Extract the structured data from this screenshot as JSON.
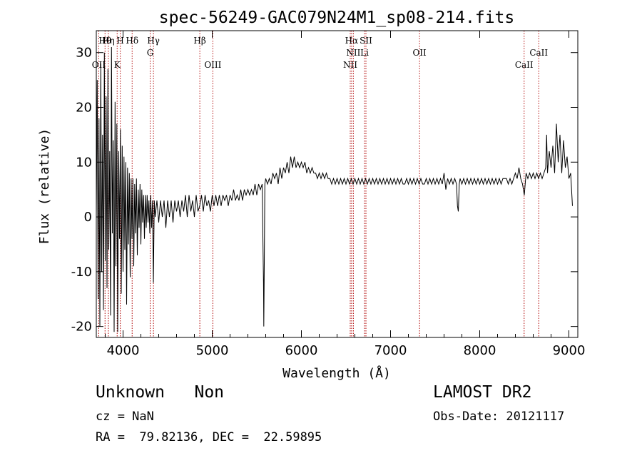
{
  "chart_data": {
    "type": "line",
    "title": "spec-56249-GAC079N24M1_sp08-214.fits",
    "xlabel": "Wavelength (Å)",
    "ylabel": "Flux (relative)",
    "xlim": [
      3700,
      9100
    ],
    "ylim": [
      -22,
      34
    ],
    "x_ticks": [
      4000,
      5000,
      6000,
      7000,
      8000,
      9000
    ],
    "y_ticks": [
      -20,
      -10,
      0,
      10,
      20,
      30
    ],
    "grid": false,
    "series": [
      {
        "points": [
          [
            3700,
            0
          ],
          [
            3710,
            25
          ],
          [
            3720,
            -15
          ],
          [
            3730,
            18
          ],
          [
            3740,
            -20
          ],
          [
            3750,
            28
          ],
          [
            3760,
            -10
          ],
          [
            3770,
            15
          ],
          [
            3780,
            -17
          ],
          [
            3790,
            30
          ],
          [
            3800,
            -8
          ],
          [
            3810,
            22
          ],
          [
            3820,
            -13
          ],
          [
            3830,
            27
          ],
          [
            3840,
            -6
          ],
          [
            3850,
            12
          ],
          [
            3860,
            -18
          ],
          [
            3870,
            31
          ],
          [
            3880,
            -3
          ],
          [
            3890,
            14
          ],
          [
            3900,
            -21
          ],
          [
            3910,
            21
          ],
          [
            3920,
            -9
          ],
          [
            3930,
            17
          ],
          [
            3940,
            -21
          ],
          [
            3950,
            12
          ],
          [
            3960,
            -4
          ],
          [
            3970,
            16
          ],
          [
            3980,
            -14
          ],
          [
            3990,
            13
          ],
          [
            4000,
            -10
          ],
          [
            4010,
            11
          ],
          [
            4020,
            -6
          ],
          [
            4030,
            10
          ],
          [
            4040,
            -16
          ],
          [
            4050,
            9
          ],
          [
            4060,
            -5
          ],
          [
            4070,
            8
          ],
          [
            4080,
            -11
          ],
          [
            4090,
            7
          ],
          [
            4100,
            -4
          ],
          [
            4110,
            7
          ],
          [
            4120,
            -9
          ],
          [
            4130,
            6
          ],
          [
            4140,
            -3
          ],
          [
            4150,
            7
          ],
          [
            4160,
            -7
          ],
          [
            4170,
            5
          ],
          [
            4180,
            -2
          ],
          [
            4190,
            6
          ],
          [
            4200,
            -5
          ],
          [
            4210,
            5
          ],
          [
            4220,
            -1
          ],
          [
            4230,
            4
          ],
          [
            4240,
            -4
          ],
          [
            4250,
            4
          ],
          [
            4260,
            -2
          ],
          [
            4270,
            4
          ],
          [
            4280,
            -1
          ],
          [
            4290,
            3
          ],
          [
            4300,
            -3
          ],
          [
            4310,
            4
          ],
          [
            4320,
            -2
          ],
          [
            4330,
            3
          ],
          [
            4340,
            -12
          ],
          [
            4350,
            3
          ],
          [
            4360,
            0
          ],
          [
            4380,
            3
          ],
          [
            4400,
            -1
          ],
          [
            4420,
            3
          ],
          [
            4440,
            0
          ],
          [
            4460,
            3
          ],
          [
            4480,
            -2
          ],
          [
            4500,
            3
          ],
          [
            4520,
            0
          ],
          [
            4540,
            3
          ],
          [
            4560,
            -1
          ],
          [
            4580,
            3
          ],
          [
            4600,
            1
          ],
          [
            4620,
            3
          ],
          [
            4640,
            0
          ],
          [
            4660,
            3
          ],
          [
            4680,
            1
          ],
          [
            4700,
            4
          ],
          [
            4720,
            0
          ],
          [
            4740,
            4
          ],
          [
            4760,
            1
          ],
          [
            4780,
            3
          ],
          [
            4800,
            0
          ],
          [
            4820,
            4
          ],
          [
            4840,
            1
          ],
          [
            4860,
            2
          ],
          [
            4880,
            4
          ],
          [
            4900,
            1
          ],
          [
            4920,
            4
          ],
          [
            4940,
            2
          ],
          [
            4960,
            3
          ],
          [
            4980,
            1
          ],
          [
            5000,
            4
          ],
          [
            5020,
            2
          ],
          [
            5040,
            4
          ],
          [
            5060,
            2
          ],
          [
            5080,
            4
          ],
          [
            5100,
            2
          ],
          [
            5120,
            4
          ],
          [
            5140,
            3
          ],
          [
            5160,
            4
          ],
          [
            5180,
            2
          ],
          [
            5200,
            4
          ],
          [
            5220,
            3
          ],
          [
            5240,
            5
          ],
          [
            5260,
            3
          ],
          [
            5280,
            4
          ],
          [
            5300,
            3
          ],
          [
            5320,
            5
          ],
          [
            5340,
            3
          ],
          [
            5360,
            5
          ],
          [
            5380,
            4
          ],
          [
            5400,
            5
          ],
          [
            5420,
            4
          ],
          [
            5440,
            5
          ],
          [
            5460,
            4
          ],
          [
            5480,
            6
          ],
          [
            5500,
            4
          ],
          [
            5520,
            6
          ],
          [
            5540,
            5
          ],
          [
            5560,
            6
          ],
          [
            5575,
            -12
          ],
          [
            5578,
            -20
          ],
          [
            5582,
            -12
          ],
          [
            5590,
            6
          ],
          [
            5600,
            7
          ],
          [
            5620,
            6
          ],
          [
            5640,
            7
          ],
          [
            5660,
            6
          ],
          [
            5680,
            8
          ],
          [
            5700,
            7
          ],
          [
            5720,
            8
          ],
          [
            5740,
            6
          ],
          [
            5760,
            9
          ],
          [
            5780,
            7
          ],
          [
            5800,
            9
          ],
          [
            5820,
            8
          ],
          [
            5840,
            10
          ],
          [
            5860,
            8
          ],
          [
            5880,
            11
          ],
          [
            5900,
            9
          ],
          [
            5920,
            11
          ],
          [
            5940,
            9
          ],
          [
            5960,
            10
          ],
          [
            5980,
            9
          ],
          [
            6000,
            10
          ],
          [
            6020,
            9
          ],
          [
            6040,
            10
          ],
          [
            6060,
            8
          ],
          [
            6080,
            9
          ],
          [
            6100,
            8
          ],
          [
            6120,
            9
          ],
          [
            6140,
            8
          ],
          [
            6160,
            8
          ],
          [
            6180,
            7
          ],
          [
            6200,
            8
          ],
          [
            6220,
            7
          ],
          [
            6240,
            8
          ],
          [
            6260,
            7
          ],
          [
            6280,
            8
          ],
          [
            6300,
            7
          ],
          [
            6320,
            7
          ],
          [
            6340,
            6
          ],
          [
            6360,
            7
          ],
          [
            6380,
            6
          ],
          [
            6400,
            7
          ],
          [
            6420,
            6
          ],
          [
            6440,
            7
          ],
          [
            6460,
            6
          ],
          [
            6480,
            7
          ],
          [
            6500,
            6
          ],
          [
            6520,
            7
          ],
          [
            6540,
            6
          ],
          [
            6560,
            7
          ],
          [
            6580,
            6
          ],
          [
            6600,
            7
          ],
          [
            6620,
            6
          ],
          [
            6640,
            7
          ],
          [
            6660,
            6
          ],
          [
            6680,
            7
          ],
          [
            6700,
            6
          ],
          [
            6720,
            7
          ],
          [
            6740,
            6
          ],
          [
            6760,
            7
          ],
          [
            6780,
            6
          ],
          [
            6800,
            7
          ],
          [
            6820,
            6
          ],
          [
            6840,
            7
          ],
          [
            6860,
            6
          ],
          [
            6880,
            7
          ],
          [
            6900,
            6
          ],
          [
            6920,
            7
          ],
          [
            6940,
            6
          ],
          [
            6960,
            7
          ],
          [
            6980,
            6
          ],
          [
            7000,
            7
          ],
          [
            7020,
            6
          ],
          [
            7040,
            7
          ],
          [
            7060,
            6
          ],
          [
            7080,
            7
          ],
          [
            7100,
            6
          ],
          [
            7120,
            7
          ],
          [
            7140,
            6
          ],
          [
            7160,
            6
          ],
          [
            7180,
            7
          ],
          [
            7200,
            6
          ],
          [
            7220,
            7
          ],
          [
            7240,
            6
          ],
          [
            7260,
            7
          ],
          [
            7280,
            6
          ],
          [
            7300,
            7
          ],
          [
            7320,
            6
          ],
          [
            7340,
            7
          ],
          [
            7360,
            6
          ],
          [
            7380,
            6
          ],
          [
            7400,
            7
          ],
          [
            7420,
            6
          ],
          [
            7440,
            7
          ],
          [
            7460,
            6
          ],
          [
            7480,
            7
          ],
          [
            7500,
            6
          ],
          [
            7520,
            7
          ],
          [
            7540,
            6
          ],
          [
            7560,
            7
          ],
          [
            7580,
            6
          ],
          [
            7600,
            8
          ],
          [
            7620,
            5
          ],
          [
            7640,
            7
          ],
          [
            7660,
            6
          ],
          [
            7680,
            7
          ],
          [
            7700,
            6
          ],
          [
            7720,
            7
          ],
          [
            7740,
            6
          ],
          [
            7750,
            2
          ],
          [
            7760,
            1
          ],
          [
            7770,
            6
          ],
          [
            7780,
            7
          ],
          [
            7800,
            6
          ],
          [
            7820,
            7
          ],
          [
            7840,
            6
          ],
          [
            7860,
            7
          ],
          [
            7880,
            6
          ],
          [
            7900,
            7
          ],
          [
            7920,
            6
          ],
          [
            7940,
            7
          ],
          [
            7960,
            6
          ],
          [
            7980,
            7
          ],
          [
            8000,
            6
          ],
          [
            8020,
            7
          ],
          [
            8040,
            6
          ],
          [
            8060,
            7
          ],
          [
            8080,
            6
          ],
          [
            8100,
            7
          ],
          [
            8120,
            6
          ],
          [
            8140,
            7
          ],
          [
            8160,
            6
          ],
          [
            8180,
            7
          ],
          [
            8200,
            6
          ],
          [
            8220,
            7
          ],
          [
            8240,
            6
          ],
          [
            8260,
            7
          ],
          [
            8280,
            7
          ],
          [
            8300,
            7
          ],
          [
            8320,
            6
          ],
          [
            8340,
            7
          ],
          [
            8360,
            6
          ],
          [
            8380,
            7
          ],
          [
            8400,
            8
          ],
          [
            8420,
            7
          ],
          [
            8440,
            9
          ],
          [
            8460,
            7
          ],
          [
            8480,
            6
          ],
          [
            8500,
            4
          ],
          [
            8520,
            8
          ],
          [
            8540,
            7
          ],
          [
            8560,
            8
          ],
          [
            8580,
            7
          ],
          [
            8600,
            8
          ],
          [
            8620,
            7
          ],
          [
            8640,
            8
          ],
          [
            8660,
            7
          ],
          [
            8680,
            8
          ],
          [
            8700,
            7
          ],
          [
            8720,
            8
          ],
          [
            8740,
            9
          ],
          [
            8750,
            15
          ],
          [
            8760,
            8
          ],
          [
            8780,
            12
          ],
          [
            8800,
            9
          ],
          [
            8820,
            13
          ],
          [
            8840,
            8
          ],
          [
            8860,
            17
          ],
          [
            8880,
            10
          ],
          [
            8900,
            15
          ],
          [
            8920,
            8
          ],
          [
            8940,
            14
          ],
          [
            8960,
            9
          ],
          [
            8980,
            11
          ],
          [
            9000,
            7
          ],
          [
            9020,
            8
          ],
          [
            9040,
            2
          ]
        ]
      }
    ],
    "line_markers": [
      {
        "label": "OII",
        "x": 3727,
        "level": 3
      },
      {
        "label": "Hθ",
        "x": 3798,
        "level": 1
      },
      {
        "label": "Hη",
        "x": 3835,
        "level": 1
      },
      {
        "label": "K",
        "x": 3934,
        "level": 3
      },
      {
        "label": "H",
        "x": 3969,
        "level": 1
      },
      {
        "label": "Hδ",
        "x": 4102,
        "level": 1
      },
      {
        "label": "G",
        "x": 4304,
        "level": 2
      },
      {
        "label": "Hγ",
        "x": 4341,
        "level": 1
      },
      {
        "label": "Hβ",
        "x": 4861,
        "level": 1
      },
      {
        "label": "OIII",
        "x": 5007,
        "level": 3
      },
      {
        "label": "NII",
        "x": 6548,
        "level": 3
      },
      {
        "label": "Hα",
        "x": 6563,
        "level": 1
      },
      {
        "label": "NII",
        "x": 6583,
        "level": 2
      },
      {
        "label": "Li",
        "x": 6708,
        "level": 2
      },
      {
        "label": "SII",
        "x": 6724,
        "level": 1
      },
      {
        "label": "OII",
        "x": 7325,
        "level": 2
      },
      {
        "label": "CaII",
        "x": 8498,
        "level": 3
      },
      {
        "label": "CaII",
        "x": 8662,
        "level": 2
      }
    ]
  },
  "info": {
    "class_text": "Unknown   Non",
    "survey": "LAMOST DR2",
    "cz": "cz = NaN",
    "obs_date": "Obs-Date: 20121117",
    "coords": "RA =  79.82136, DEC =  22.59895"
  }
}
